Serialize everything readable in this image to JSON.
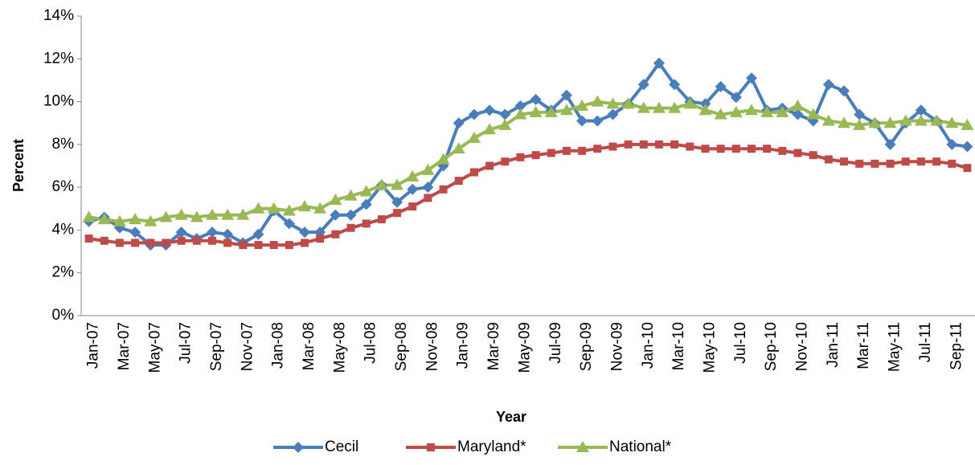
{
  "chart_data": {
    "type": "line",
    "x_label": "Year",
    "y_label": "Percent",
    "categories": [
      "Jan-07",
      null,
      "Mar-07",
      null,
      "May-07",
      null,
      "Jul-07",
      null,
      "Sep-07",
      null,
      "Nov-07",
      null,
      "Jan-08",
      null,
      "Mar-08",
      null,
      "May-08",
      null,
      "Jul-08",
      null,
      "Sep-08",
      null,
      "Nov-08",
      null,
      "Jan-09",
      null,
      "Mar-09",
      null,
      "May-09",
      null,
      "Jul-09",
      null,
      "Sep-09",
      null,
      "Nov-09",
      null,
      "Jan-10",
      null,
      "Mar-10",
      null,
      "May-10",
      null,
      "Jul-10",
      null,
      "Sep-10",
      null,
      "Nov-10",
      null,
      "Jan-11",
      null,
      "Mar-11",
      null,
      "May-11",
      null,
      "Jul-11",
      null,
      "Sep-11",
      null
    ],
    "series": [
      {
        "name": "Cecil",
        "color": "#4a7ebb",
        "marker": "diamond",
        "values": [
          4.4,
          4.6,
          4.1,
          3.9,
          3.3,
          3.3,
          3.9,
          3.6,
          3.9,
          3.8,
          3.4,
          3.8,
          4.9,
          4.3,
          3.9,
          3.9,
          4.7,
          4.7,
          5.2,
          6.1,
          5.3,
          5.9,
          6.0,
          7.0,
          9.0,
          9.4,
          9.6,
          9.4,
          9.8,
          10.1,
          9.6,
          10.3,
          9.1,
          9.1,
          9.4,
          9.9,
          10.8,
          11.8,
          10.8,
          10.0,
          9.9,
          10.7,
          10.2,
          11.1,
          9.6,
          9.7,
          9.4,
          9.1,
          10.8,
          10.5,
          9.4,
          9.0,
          8.0,
          9.0,
          9.6,
          9.1,
          8.0,
          7.9
        ]
      },
      {
        "name": "Maryland*",
        "color": "#be4b48",
        "marker": "square",
        "values": [
          3.6,
          3.5,
          3.4,
          3.4,
          3.4,
          3.4,
          3.5,
          3.5,
          3.5,
          3.4,
          3.3,
          3.3,
          3.3,
          3.3,
          3.4,
          3.6,
          3.8,
          4.1,
          4.3,
          4.5,
          4.8,
          5.1,
          5.5,
          5.9,
          6.3,
          6.7,
          7.0,
          7.2,
          7.4,
          7.5,
          7.6,
          7.7,
          7.7,
          7.8,
          7.9,
          8.0,
          8.0,
          8.0,
          8.0,
          7.9,
          7.8,
          7.8,
          7.8,
          7.8,
          7.8,
          7.7,
          7.6,
          7.5,
          7.3,
          7.2,
          7.1,
          7.1,
          7.1,
          7.2,
          7.2,
          7.2,
          7.1,
          6.9
        ]
      },
      {
        "name": "National*",
        "color": "#98b954",
        "marker": "triangle",
        "values": [
          4.6,
          4.5,
          4.4,
          4.5,
          4.4,
          4.6,
          4.7,
          4.6,
          4.7,
          4.7,
          4.7,
          5.0,
          5.0,
          4.9,
          5.1,
          5.0,
          5.4,
          5.6,
          5.8,
          6.1,
          6.1,
          6.5,
          6.8,
          7.3,
          7.8,
          8.3,
          8.7,
          8.9,
          9.4,
          9.5,
          9.5,
          9.6,
          9.8,
          10.0,
          9.9,
          9.9,
          9.7,
          9.7,
          9.7,
          9.9,
          9.6,
          9.4,
          9.5,
          9.6,
          9.5,
          9.5,
          9.8,
          9.4,
          9.1,
          9.0,
          8.9,
          9.0,
          9.0,
          9.1,
          9.1,
          9.1,
          9.0,
          8.9
        ]
      }
    ],
    "ylim": [
      0,
      14
    ],
    "yticks": [
      {
        "value": 0,
        "label": "0%"
      },
      {
        "value": 2,
        "label": "2%"
      },
      {
        "value": 4,
        "label": "4%"
      },
      {
        "value": 6,
        "label": "6%"
      },
      {
        "value": 8,
        "label": "8%"
      },
      {
        "value": 10,
        "label": "10%"
      },
      {
        "value": 12,
        "label": "12%"
      },
      {
        "value": 14,
        "label": "14%"
      }
    ],
    "grid": false,
    "legend_position": "bottom"
  }
}
